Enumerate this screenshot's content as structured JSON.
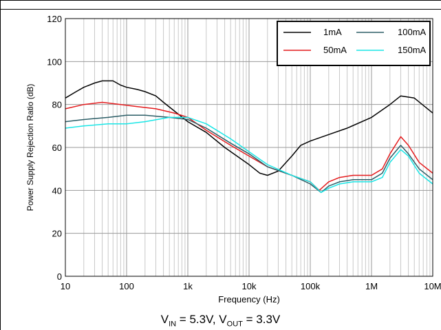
{
  "chart_data": {
    "type": "line",
    "xlabel": "Frequency (Hz)",
    "ylabel": "Power Supply Rejection Ratio (dB)",
    "x_scale": "log",
    "xlim": [
      10,
      10000000
    ],
    "ylim": [
      0,
      120
    ],
    "x_ticks": [
      10,
      100,
      1000,
      10000,
      100000,
      1000000,
      10000000
    ],
    "x_tick_labels": [
      "10",
      "100",
      "1k",
      "10k",
      "100k",
      "1M",
      "10M"
    ],
    "y_ticks": [
      0,
      20,
      40,
      60,
      80,
      100,
      120
    ],
    "y_tick_labels": [
      "0",
      "20",
      "40",
      "60",
      "80",
      "100",
      "120"
    ],
    "grid": true,
    "legend_position": "top-right",
    "series": [
      {
        "name": "1mA",
        "color": "#000000",
        "points": [
          [
            10,
            83
          ],
          [
            15,
            86
          ],
          [
            20,
            88
          ],
          [
            30,
            90
          ],
          [
            40,
            91
          ],
          [
            60,
            91
          ],
          [
            80,
            89
          ],
          [
            100,
            88
          ],
          [
            150,
            87
          ],
          [
            200,
            86
          ],
          [
            300,
            84
          ],
          [
            400,
            81
          ],
          [
            600,
            77
          ],
          [
            1000,
            72
          ],
          [
            2000,
            67
          ],
          [
            4000,
            60
          ],
          [
            10000,
            52
          ],
          [
            15000,
            48
          ],
          [
            20000,
            47
          ],
          [
            30000,
            49
          ],
          [
            50000,
            56
          ],
          [
            70000,
            61
          ],
          [
            100000,
            63
          ],
          [
            200000,
            66
          ],
          [
            400000,
            69
          ],
          [
            1000000,
            74
          ],
          [
            2000000,
            80
          ],
          [
            3000000,
            84
          ],
          [
            5000000,
            83
          ],
          [
            10000000,
            76
          ]
        ]
      },
      {
        "name": "50mA",
        "color": "#e41a1c",
        "points": [
          [
            10,
            78
          ],
          [
            20,
            80
          ],
          [
            40,
            81
          ],
          [
            80,
            80
          ],
          [
            150,
            79
          ],
          [
            300,
            78
          ],
          [
            600,
            76
          ],
          [
            1000,
            74
          ],
          [
            2000,
            68
          ],
          [
            5000,
            61
          ],
          [
            10000,
            56
          ],
          [
            20000,
            51
          ],
          [
            50000,
            47
          ],
          [
            100000,
            44
          ],
          [
            140000,
            40
          ],
          [
            200000,
            44
          ],
          [
            300000,
            46
          ],
          [
            500000,
            47
          ],
          [
            1000000,
            47
          ],
          [
            1500000,
            50
          ],
          [
            2000000,
            57
          ],
          [
            3000000,
            65
          ],
          [
            4000000,
            61
          ],
          [
            6000000,
            53
          ],
          [
            10000000,
            48
          ]
        ]
      },
      {
        "name": "100mA",
        "color": "#2b5d66",
        "points": [
          [
            10,
            72
          ],
          [
            20,
            73
          ],
          [
            50,
            74
          ],
          [
            100,
            75
          ],
          [
            200,
            75
          ],
          [
            500,
            74
          ],
          [
            1000,
            73
          ],
          [
            2000,
            69
          ],
          [
            5000,
            62
          ],
          [
            10000,
            57
          ],
          [
            20000,
            51
          ],
          [
            50000,
            47
          ],
          [
            100000,
            43
          ],
          [
            150000,
            39
          ],
          [
            200000,
            42
          ],
          [
            300000,
            44
          ],
          [
            500000,
            45
          ],
          [
            1000000,
            45
          ],
          [
            1500000,
            48
          ],
          [
            2000000,
            55
          ],
          [
            3000000,
            61
          ],
          [
            4000000,
            57
          ],
          [
            6000000,
            50
          ],
          [
            10000000,
            45
          ]
        ]
      },
      {
        "name": "150mA",
        "color": "#18e6e6",
        "points": [
          [
            10,
            69
          ],
          [
            20,
            70
          ],
          [
            50,
            71
          ],
          [
            100,
            71
          ],
          [
            200,
            72
          ],
          [
            500,
            74
          ],
          [
            1000,
            74
          ],
          [
            2000,
            71
          ],
          [
            5000,
            64
          ],
          [
            10000,
            58
          ],
          [
            20000,
            52
          ],
          [
            50000,
            47
          ],
          [
            100000,
            44
          ],
          [
            150000,
            39
          ],
          [
            200000,
            41
          ],
          [
            300000,
            43
          ],
          [
            500000,
            44
          ],
          [
            1000000,
            44
          ],
          [
            1500000,
            46
          ],
          [
            2000000,
            53
          ],
          [
            3000000,
            59
          ],
          [
            4000000,
            56
          ],
          [
            6000000,
            48
          ],
          [
            10000000,
            43
          ]
        ]
      }
    ]
  },
  "caption": {
    "v_in_sub": "IN",
    "v_in_text": " = 5.3V, V",
    "v_out_sub": "OUT",
    "v_out_text": " = 3.3V",
    "v_letter": "V"
  }
}
